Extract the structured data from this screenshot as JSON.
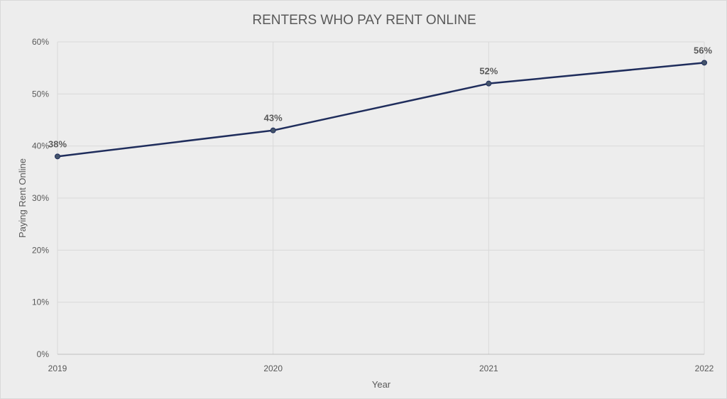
{
  "chart_data": {
    "type": "line",
    "title": "RENTERS WHO PAY RENT ONLINE",
    "xlabel": "Year",
    "ylabel": "Paying Rent Online",
    "categories": [
      "2019",
      "2020",
      "2021",
      "2022"
    ],
    "series": [
      {
        "values": [
          38,
          43,
          52,
          56
        ]
      }
    ],
    "data_labels": [
      "38%",
      "43%",
      "52%",
      "56%"
    ],
    "ylim": [
      0,
      60
    ],
    "y_ticks": [
      0,
      10,
      20,
      30,
      40,
      50,
      60
    ],
    "y_tick_labels": [
      "0%",
      "10%",
      "20%",
      "30%",
      "40%",
      "50%",
      "60%"
    ],
    "grid": true,
    "legend": "none",
    "colors": {
      "line": "#1f2d5c",
      "marker": "#44546a",
      "grid": "#d9d9d9",
      "background": "#ededed"
    }
  }
}
